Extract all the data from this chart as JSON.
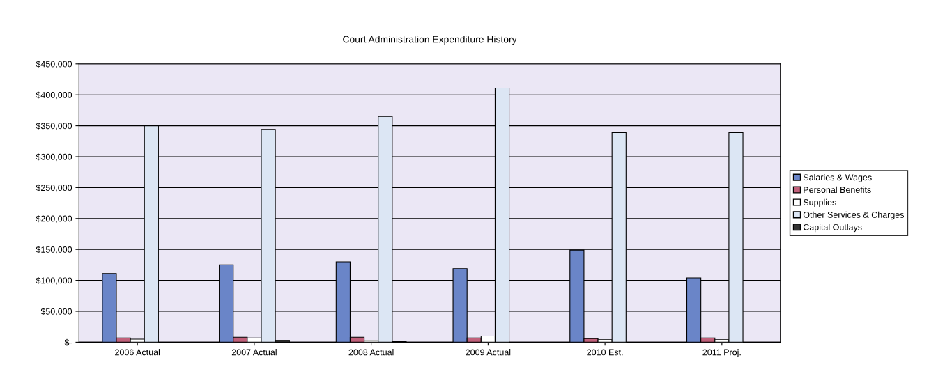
{
  "chart_data": {
    "type": "bar",
    "title": "Court Administration Expenditure History",
    "categories": [
      "2006 Actual",
      "2007 Actual",
      "2008 Actual",
      "2009 Actual",
      "2010 Est.",
      "2011 Proj."
    ],
    "series": [
      {
        "name": "Salaries & Wages",
        "color": "#6a85c8",
        "values": [
          111000,
          125000,
          130000,
          119000,
          149000,
          104000
        ]
      },
      {
        "name": "Personal Benefits",
        "color": "#c0607a",
        "values": [
          7000,
          8000,
          8000,
          7000,
          6000,
          7000
        ]
      },
      {
        "name": "Supplies",
        "color": "#ffffff",
        "values": [
          5000,
          7000,
          3000,
          10000,
          4000,
          4000
        ]
      },
      {
        "name": "Other Services & Charges",
        "color": "#dce6f4",
        "values": [
          350000,
          344000,
          365000,
          411000,
          339000,
          339000
        ]
      },
      {
        "name": "Capital Outlays",
        "color": "#333333",
        "values": [
          null,
          3000,
          1000,
          null,
          null,
          null
        ]
      }
    ],
    "ylim": [
      0,
      450000
    ],
    "yticks": [
      {
        "value": 0,
        "label": "$-"
      },
      {
        "value": 50000,
        "label": "$50,000"
      },
      {
        "value": 100000,
        "label": "$100,000"
      },
      {
        "value": 150000,
        "label": "$150,000"
      },
      {
        "value": 200000,
        "label": "$200,000"
      },
      {
        "value": 250000,
        "label": "$250,000"
      },
      {
        "value": 300000,
        "label": "$300,000"
      },
      {
        "value": 350000,
        "label": "$350,000"
      },
      {
        "value": 400000,
        "label": "$400,000"
      },
      {
        "value": 450000,
        "label": "$450,000"
      }
    ],
    "grid": "y",
    "legend": "right"
  }
}
